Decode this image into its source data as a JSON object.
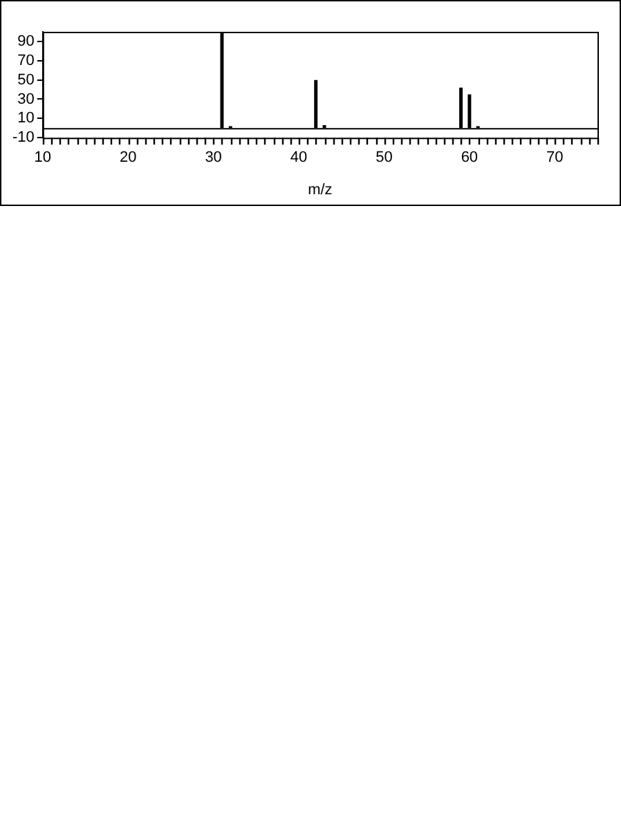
{
  "chart_data": {
    "type": "bar",
    "xlabel": "m/z",
    "x": [
      31,
      32,
      42,
      43,
      59,
      60,
      61
    ],
    "values": [
      100,
      2,
      50,
      3,
      42,
      35,
      2
    ],
    "color": "#000000",
    "xlim": [
      10,
      75
    ],
    "xticks": [
      10,
      {
        "value": 11,
        "label": null
      },
      {
        "value": 12,
        "label": null
      },
      {
        "value": 13,
        "label": null
      },
      {
        "value": 14,
        "label": null
      },
      {
        "value": 15,
        "label": null
      },
      {
        "value": 16,
        "label": null
      },
      {
        "value": 17,
        "label": null
      },
      {
        "value": 18,
        "label": null
      },
      {
        "value": 19,
        "label": null
      },
      20,
      {
        "value": 21,
        "label": null
      },
      {
        "value": 22,
        "label": null
      },
      {
        "value": 23,
        "label": null
      },
      {
        "value": 24,
        "label": null
      },
      {
        "value": 25,
        "label": null
      },
      {
        "value": 26,
        "label": null
      },
      {
        "value": 27,
        "label": null
      },
      {
        "value": 28,
        "label": null
      },
      {
        "value": 29,
        "label": null
      },
      30,
      {
        "value": 31,
        "label": null
      },
      {
        "value": 32,
        "label": null
      },
      {
        "value": 33,
        "label": null
      },
      {
        "value": 34,
        "label": null
      },
      {
        "value": 35,
        "label": null
      },
      {
        "value": 36,
        "label": null
      },
      {
        "value": 37,
        "label": null
      },
      {
        "value": 38,
        "label": null
      },
      {
        "value": 39,
        "label": null
      },
      40,
      {
        "value": 41,
        "label": null
      },
      {
        "value": 42,
        "label": null
      },
      {
        "value": 43,
        "label": null
      },
      {
        "value": 44,
        "label": null
      },
      {
        "value": 45,
        "label": null
      },
      {
        "value": 46,
        "label": null
      },
      {
        "value": 47,
        "label": null
      },
      {
        "value": 48,
        "label": null
      },
      {
        "value": 49,
        "label": null
      },
      50,
      {
        "value": 51,
        "label": null
      },
      {
        "value": 52,
        "label": null
      },
      {
        "value": 53,
        "label": null
      },
      {
        "value": 54,
        "label": null
      },
      {
        "value": 55,
        "label": null
      },
      {
        "value": 56,
        "label": null
      },
      {
        "value": 57,
        "label": null
      },
      {
        "value": 58,
        "label": null
      },
      {
        "value": 59,
        "label": null
      },
      60,
      {
        "value": 61,
        "label": null
      },
      {
        "value": 62,
        "label": null
      },
      {
        "value": 63,
        "label": null
      },
      {
        "value": 64,
        "label": null
      },
      {
        "value": 65,
        "label": null
      },
      {
        "value": 66,
        "label": null
      },
      {
        "value": 67,
        "label": null
      },
      {
        "value": 68,
        "label": null
      },
      {
        "value": 69,
        "label": null
      },
      70,
      {
        "value": 71,
        "label": null
      },
      {
        "value": 72,
        "label": null
      },
      {
        "value": 73,
        "label": null
      },
      {
        "value": 74,
        "label": null
      },
      {
        "value": 75,
        "label": null
      }
    ],
    "ylim": [
      -10,
      100
    ],
    "yticks": [
      -10,
      10,
      30,
      50,
      70,
      90
    ],
    "ref_lines": [
      {
        "axis": "y",
        "value": 0,
        "color": "#000000"
      }
    ],
    "grid": false,
    "legend": false
  }
}
